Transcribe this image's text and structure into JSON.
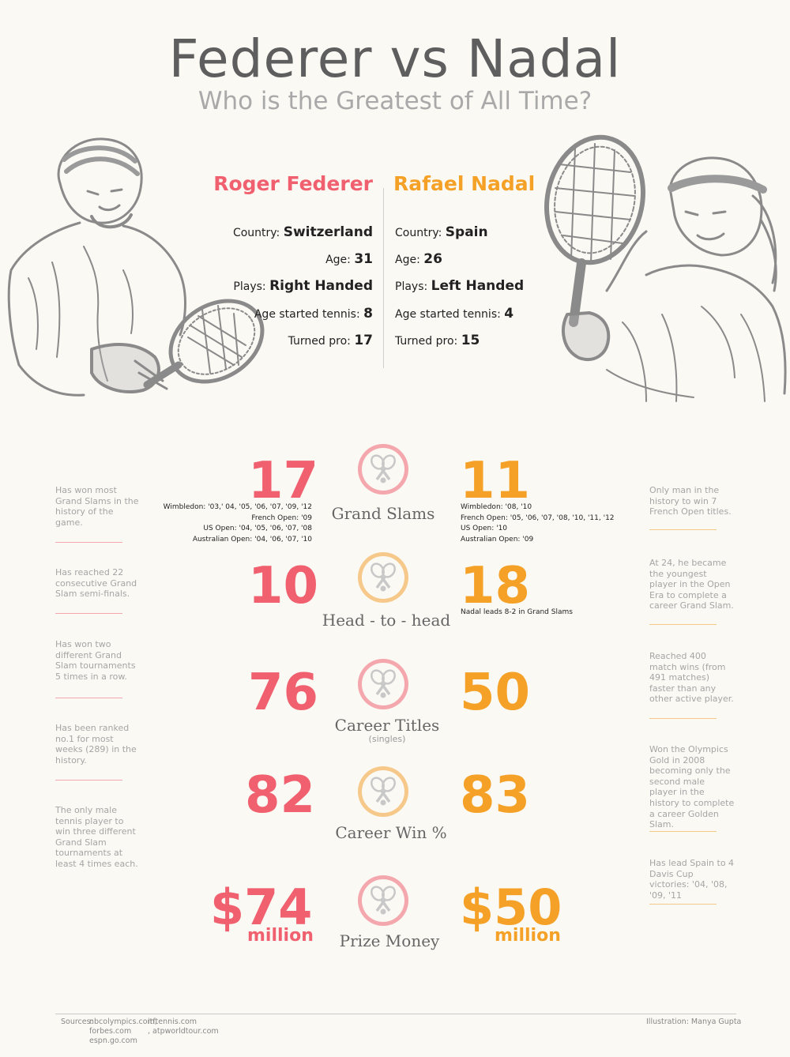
{
  "header": {
    "title": "Federer vs Nadal",
    "subtitle": "Who is the Greatest of All Time?"
  },
  "colors": {
    "federer": "#f0606e",
    "nadal": "#f5a127",
    "sketch": "#8a8a8a",
    "background": "#faf9f4"
  },
  "federer": {
    "name": "Roger Federer",
    "profile": [
      {
        "label": "Country:",
        "value": "Switzerland"
      },
      {
        "label": "Age:",
        "value": "31"
      },
      {
        "label": "Plays:",
        "value": "Right Handed"
      },
      {
        "label": "Age started tennis:",
        "value": "8"
      },
      {
        "label": "Turned pro:",
        "value": "17"
      }
    ],
    "facts": [
      "Has won most Grand Slams in the history of the game.",
      "Has reached 22 consecutive Grand Slam semi-finals.",
      "Has won two different Grand Slam tournaments 5 times in a row.",
      "Has been ranked no.1 for most weeks (289) in the history.",
      "The only male tennis player to win three different Grand Slam tournaments at least 4 times each."
    ]
  },
  "nadal": {
    "name": "Rafael Nadal",
    "profile": [
      {
        "label": "Country:",
        "value": "Spain"
      },
      {
        "label": "Age:",
        "value": "26"
      },
      {
        "label": "Plays:",
        "value": "Left Handed"
      },
      {
        "label": "Age started tennis:",
        "value": "4"
      },
      {
        "label": "Turned pro:",
        "value": "15"
      }
    ],
    "facts": [
      "Only man in the history to win 7 French Open titles.",
      "At 24, he became the youngest player in the Open Era to complete a career Grand Slam.",
      "Reached 400 match wins (from 491 matches) faster than any other active player.",
      "Won the Olympics Gold in 2008 becoming only the second male player in the history to complete a career Golden Slam.",
      "Has lead Spain to 4 Davis Cup victories: '04, '08, '09, '11"
    ]
  },
  "stats": [
    {
      "label": "Grand Slams",
      "federer": "17",
      "nadal": "11",
      "icon": "tennis-rackets-icon",
      "federer_details": [
        "Wimbledon: '03,' 04, '05, '06, '07, '09, '12",
        "French Open: '09",
        "US Open: '04, '05, '06, '07, '08",
        "Australian Open: '04, '06, '07, '10"
      ],
      "nadal_details": [
        "Wimbledon: '08, '10",
        "French Open: '05, '06, '07, '08, '10, '11, '12",
        "US Open: '10",
        "Australian Open: '09"
      ]
    },
    {
      "label": "Head - to - head",
      "federer": "10",
      "nadal": "18",
      "icon": "tennis-rackets-icon",
      "nadal_details": [
        "Nadal leads 8-2 in Grand Slams"
      ]
    },
    {
      "label": "Career Titles",
      "sublabel": "(singles)",
      "federer": "76",
      "nadal": "50",
      "icon": "tennis-rackets-icon"
    },
    {
      "label": "Career Win %",
      "federer": "82",
      "nadal": "83",
      "icon": "tennis-rackets-icon"
    },
    {
      "label": "Prize Money",
      "federer": "$74",
      "nadal": "$50",
      "unit": "million",
      "icon": "tennis-rackets-icon"
    }
  ],
  "footer": {
    "sources_label": "Sources:",
    "sources_col1": [
      "nbcolympics.com,",
      "forbes.com",
      "espn.go.com"
    ],
    "sources_col2": [
      "itftennis.com",
      ", atpworldtour.com"
    ],
    "credit": "Illustration: Manya Gupta"
  }
}
